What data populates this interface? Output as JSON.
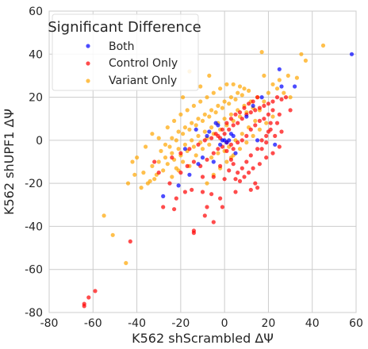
{
  "chart_data": {
    "type": "scatter",
    "xlabel": "K562 shScrambled ΔΨ",
    "ylabel": "K562 shUPF1 ΔΨ",
    "xlim": [
      -80,
      60
    ],
    "ylim": [
      -80,
      60
    ],
    "xticks": [
      -80,
      -60,
      -40,
      -20,
      0,
      20,
      40,
      60
    ],
    "yticks": [
      -80,
      -60,
      -40,
      -20,
      0,
      20,
      40,
      60
    ],
    "grid": true,
    "legend": {
      "title": "Significant Difference",
      "placement": "top-left"
    },
    "series": [
      {
        "name": "Both",
        "color": "#0000ff",
        "points": [
          [
            58,
            40
          ],
          [
            25,
            33
          ],
          [
            32,
            25
          ],
          [
            26,
            25
          ],
          [
            -28,
            -26
          ],
          [
            -21,
            -21
          ],
          [
            -7,
            4
          ],
          [
            -8,
            2
          ],
          [
            -3,
            7
          ],
          [
            -1,
            0
          ],
          [
            0,
            0
          ],
          [
            1,
            -1
          ],
          [
            2,
            0
          ],
          [
            -2,
            -2
          ],
          [
            4,
            2
          ],
          [
            13,
            16
          ],
          [
            17,
            20
          ],
          [
            10,
            11
          ],
          [
            -13,
            5
          ],
          [
            -18,
            -4
          ],
          [
            -10,
            -8
          ],
          [
            -16,
            -16
          ],
          [
            5,
            -6
          ],
          [
            -5,
            -10
          ],
          [
            15,
            0
          ],
          [
            -12,
            -11
          ],
          [
            23,
            -2
          ],
          [
            3,
            3
          ],
          [
            -4,
            8
          ]
        ]
      },
      {
        "name": "Control Only",
        "color": "#ff0000",
        "points": [
          [
            -64,
            -77
          ],
          [
            -64,
            -76
          ],
          [
            -62,
            -73
          ],
          [
            -59,
            -70
          ],
          [
            -43,
            -47
          ],
          [
            -14,
            -43
          ],
          [
            -14,
            -42
          ],
          [
            -5,
            -38
          ],
          [
            -23,
            -32
          ],
          [
            -8,
            -31
          ],
          [
            -28,
            -31
          ],
          [
            -1,
            -31
          ],
          [
            -9,
            -35
          ],
          [
            -22,
            -27
          ],
          [
            -18,
            -24
          ],
          [
            -15,
            -23
          ],
          [
            -10,
            -24
          ],
          [
            -6,
            -25
          ],
          [
            -2,
            -27
          ],
          [
            5,
            -24
          ],
          [
            12,
            -23
          ],
          [
            15,
            -22
          ],
          [
            -25,
            -20
          ],
          [
            -10,
            -17
          ],
          [
            -5,
            -17
          ],
          [
            0,
            -18
          ],
          [
            5,
            -18
          ],
          [
            14,
            -20
          ],
          [
            -20,
            -15
          ],
          [
            -17,
            -12
          ],
          [
            -14,
            -10
          ],
          [
            -11,
            -12
          ],
          [
            -8,
            -9
          ],
          [
            -5,
            -6
          ],
          [
            -3,
            -4
          ],
          [
            -1,
            -3
          ],
          [
            1,
            -1
          ],
          [
            3,
            -2
          ],
          [
            4,
            -4
          ],
          [
            6,
            -1
          ],
          [
            8,
            0
          ],
          [
            10,
            2
          ],
          [
            12,
            5
          ],
          [
            14,
            7
          ],
          [
            16,
            9
          ],
          [
            18,
            10
          ],
          [
            20,
            12
          ],
          [
            22,
            14
          ],
          [
            25,
            12
          ],
          [
            21,
            5
          ],
          [
            19,
            2
          ],
          [
            17,
            0
          ],
          [
            15,
            -4
          ],
          [
            12,
            -7
          ],
          [
            10,
            -10
          ],
          [
            8,
            -13
          ],
          [
            6,
            -15
          ],
          [
            3,
            -9
          ],
          [
            1,
            -5
          ],
          [
            -2,
            1
          ],
          [
            0,
            3
          ],
          [
            2,
            5
          ],
          [
            4,
            7
          ],
          [
            6,
            8
          ],
          [
            8,
            10
          ],
          [
            10,
            12
          ],
          [
            12,
            13
          ],
          [
            14,
            14
          ],
          [
            16,
            15
          ],
          [
            18,
            16
          ],
          [
            20,
            17
          ],
          [
            22,
            18
          ],
          [
            24,
            20
          ],
          [
            26,
            19
          ],
          [
            20,
            4
          ],
          [
            23,
            2
          ],
          [
            25,
            -3
          ],
          [
            22,
            -6
          ],
          [
            19,
            -8
          ],
          [
            16,
            -11
          ],
          [
            13,
            -13
          ],
          [
            11,
            -15
          ],
          [
            9,
            -17
          ],
          [
            7,
            -19
          ],
          [
            -3,
            2
          ],
          [
            -1,
            5
          ],
          [
            1,
            8
          ],
          [
            3,
            10
          ],
          [
            5,
            12
          ],
          [
            7,
            13
          ],
          [
            9,
            15
          ],
          [
            11,
            17
          ],
          [
            13,
            18
          ],
          [
            15,
            20
          ],
          [
            -24,
            -8
          ],
          [
            -20,
            -6
          ],
          [
            -16,
            -4
          ],
          [
            -12,
            -2
          ],
          [
            -9,
            0
          ],
          [
            -6,
            1
          ],
          [
            -4,
            3
          ],
          [
            -30,
            -15
          ],
          [
            -32,
            -10
          ],
          [
            28,
            20
          ],
          [
            30,
            14
          ],
          [
            24,
            8
          ],
          [
            26,
            4
          ],
          [
            -2,
            -12
          ],
          [
            2,
            -14
          ],
          [
            4,
            -11
          ],
          [
            17,
            -4
          ],
          [
            19,
            -1
          ],
          [
            21,
            8
          ]
        ]
      },
      {
        "name": "Variant Only",
        "color": "#ffa500",
        "points": [
          [
            45,
            44
          ],
          [
            35,
            40
          ],
          [
            17,
            41
          ],
          [
            37,
            37
          ],
          [
            -16,
            32
          ],
          [
            -7,
            30
          ],
          [
            33,
            29
          ],
          [
            29,
            30
          ],
          [
            -11,
            25
          ],
          [
            18,
            30
          ],
          [
            -19,
            20
          ],
          [
            -45,
            -57
          ],
          [
            -51,
            -44
          ],
          [
            -55,
            -35
          ],
          [
            -44,
            -20
          ],
          [
            -41,
            -16
          ],
          [
            -37,
            -15
          ],
          [
            -33,
            -12
          ],
          [
            -30,
            -10
          ],
          [
            -27,
            -8
          ],
          [
            -24,
            -6
          ],
          [
            -21,
            -4
          ],
          [
            -18,
            -2
          ],
          [
            -15,
            0
          ],
          [
            -12,
            2
          ],
          [
            -9,
            4
          ],
          [
            -6,
            6
          ],
          [
            -3,
            8
          ],
          [
            0,
            10
          ],
          [
            3,
            12
          ],
          [
            6,
            14
          ],
          [
            9,
            16
          ],
          [
            12,
            18
          ],
          [
            15,
            20
          ],
          [
            -25,
            -3
          ],
          [
            -22,
            0
          ],
          [
            -19,
            3
          ],
          [
            -16,
            5
          ],
          [
            -13,
            7
          ],
          [
            -10,
            9
          ],
          [
            -7,
            11
          ],
          [
            -4,
            13
          ],
          [
            -1,
            15
          ],
          [
            2,
            17
          ],
          [
            5,
            19
          ],
          [
            8,
            21
          ],
          [
            11,
            23
          ],
          [
            -35,
            -20
          ],
          [
            -38,
            -22
          ],
          [
            -32,
            -18
          ],
          [
            -28,
            -14
          ],
          [
            -26,
            -11
          ],
          [
            -23,
            -9
          ],
          [
            -20,
            -7
          ],
          [
            -17,
            -5
          ],
          [
            -14,
            -3
          ],
          [
            -11,
            -1
          ],
          [
            -8,
            1
          ],
          [
            -5,
            3
          ],
          [
            -2,
            5
          ],
          [
            1,
            7
          ],
          [
            4,
            9
          ],
          [
            7,
            11
          ],
          [
            10,
            13
          ],
          [
            13,
            15
          ],
          [
            -29,
            -5
          ],
          [
            -27,
            -2
          ],
          [
            -24,
            1
          ],
          [
            -21,
            4
          ],
          [
            -18,
            6
          ],
          [
            -15,
            8
          ],
          [
            -12,
            10
          ],
          [
            -9,
            12
          ],
          [
            -6,
            14
          ],
          [
            -3,
            16
          ],
          [
            0,
            18
          ],
          [
            3,
            20
          ],
          [
            6,
            22
          ],
          [
            9,
            24
          ],
          [
            -8,
            -20
          ],
          [
            -5,
            -16
          ],
          [
            -2,
            -13
          ],
          [
            1,
            -10
          ],
          [
            4,
            -7
          ],
          [
            7,
            -4
          ],
          [
            10,
            -1
          ],
          [
            13,
            2
          ],
          [
            16,
            5
          ],
          [
            19,
            8
          ],
          [
            22,
            11
          ],
          [
            -33,
            3
          ],
          [
            -30,
            1
          ],
          [
            -36,
            -3
          ],
          [
            -40,
            -8
          ],
          [
            -26,
            6
          ],
          [
            -23,
            9
          ],
          [
            -20,
            12
          ],
          [
            -17,
            14
          ],
          [
            -14,
            16
          ],
          [
            -11,
            18
          ],
          [
            -8,
            20
          ],
          [
            -5,
            22
          ],
          [
            -2,
            24
          ],
          [
            1,
            26
          ],
          [
            4,
            26
          ],
          [
            7,
            25
          ],
          [
            -42,
            -10
          ],
          [
            -31,
            -16
          ],
          [
            -34,
            -19
          ],
          [
            -24,
            -17
          ],
          [
            -21,
            -14
          ],
          [
            24,
            24
          ],
          [
            27,
            22
          ],
          [
            30,
            20
          ],
          [
            -13,
            -7
          ],
          [
            -10,
            -4
          ],
          [
            -7,
            -2
          ],
          [
            2,
            -3
          ],
          [
            5,
            0
          ],
          [
            8,
            3
          ],
          [
            11,
            6
          ],
          [
            14,
            9
          ],
          [
            -6,
            -8
          ],
          [
            -3,
            -6
          ],
          [
            0,
            -5
          ],
          [
            3,
            -8
          ],
          [
            -16,
            -12
          ],
          [
            -19,
            -10
          ],
          [
            -22,
            -13
          ],
          [
            16,
            14
          ],
          [
            18,
            18
          ],
          [
            20,
            22
          ],
          [
            22,
            26
          ],
          [
            25,
            28
          ]
        ]
      }
    ]
  }
}
